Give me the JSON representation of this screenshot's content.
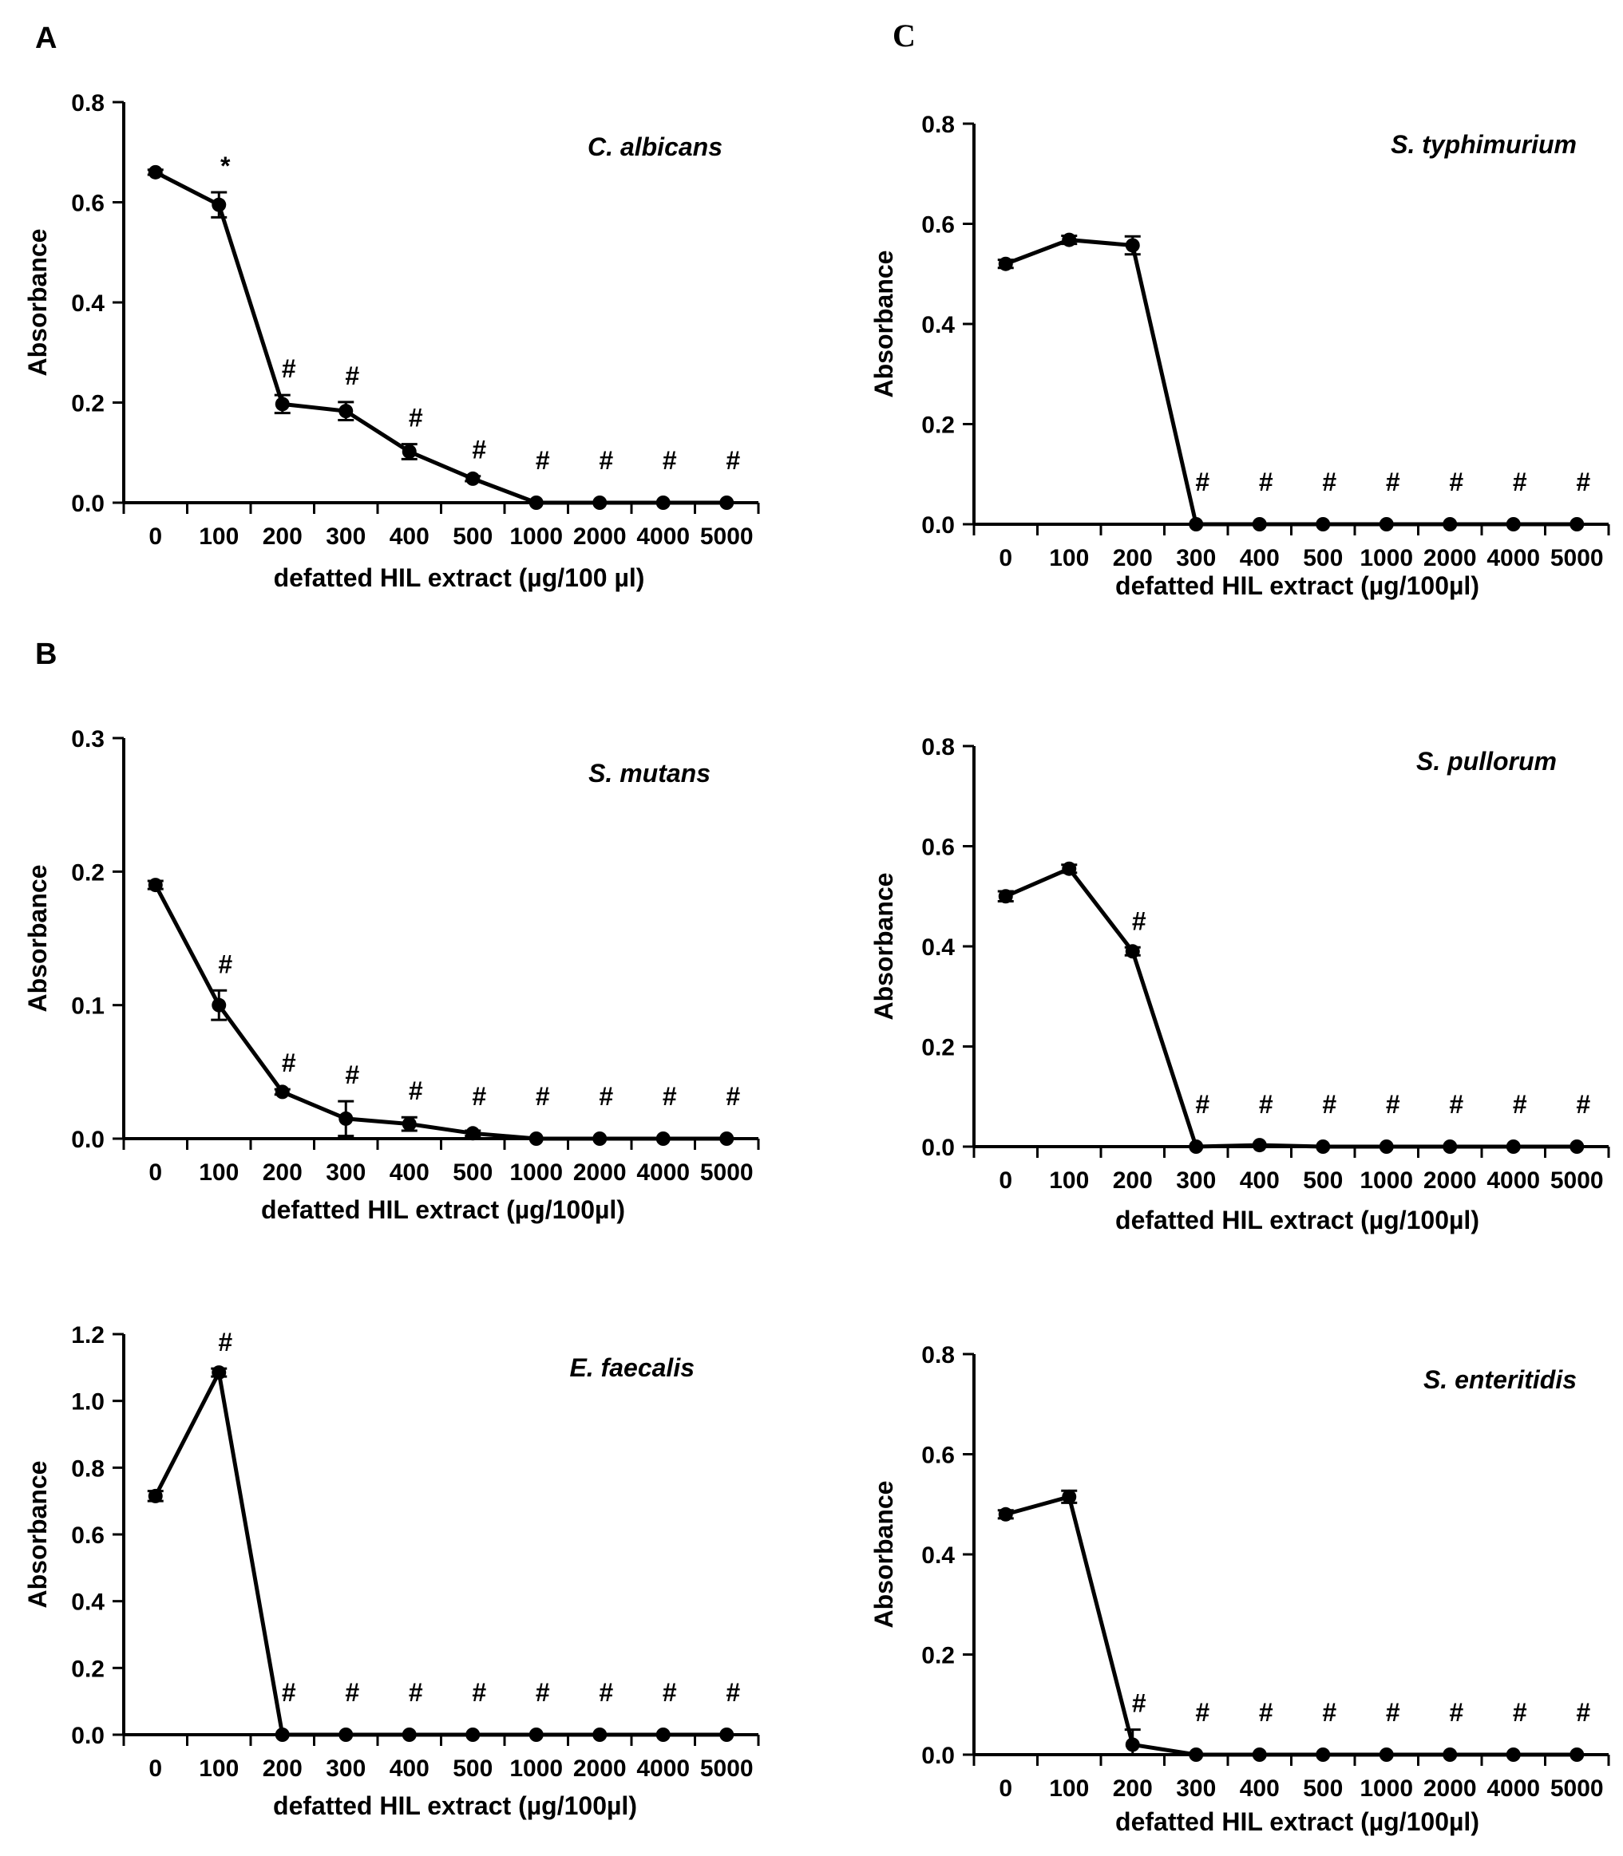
{
  "panel_letters": {
    "a": "A",
    "b": "B",
    "c": "C"
  },
  "chart_data": [
    {
      "id": "c-albicans",
      "type": "line",
      "title": "C. albicans",
      "xlabel": "defatted HIL extract (µg/100 µl)",
      "ylabel": "Absorbance",
      "categories": [
        "0",
        "100",
        "200",
        "300",
        "400",
        "500",
        "1000",
        "2000",
        "4000",
        "5000"
      ],
      "values": [
        0.66,
        0.595,
        0.197,
        0.183,
        0.102,
        0.048,
        0.0,
        0.0,
        0.0,
        0.0
      ],
      "errors": [
        0.005,
        0.025,
        0.018,
        0.018,
        0.015,
        0.005,
        0,
        0,
        0,
        0
      ],
      "annotations": [
        "",
        "*",
        "#",
        "#",
        "#",
        "#",
        "#",
        "#",
        "#",
        "#"
      ],
      "ylim": [
        0,
        0.8
      ],
      "yticks": [
        "0.0",
        "0.2",
        "0.4",
        "0.6",
        "0.8"
      ]
    },
    {
      "id": "s-mutans",
      "type": "line",
      "title": "S. mutans",
      "xlabel": "defatted HIL extract (µg/100µl)",
      "ylabel": "Absorbance",
      "categories": [
        "0",
        "100",
        "200",
        "300",
        "400",
        "500",
        "1000",
        "2000",
        "4000",
        "5000"
      ],
      "values": [
        0.19,
        0.1,
        0.035,
        0.015,
        0.011,
        0.004,
        0.0,
        0.0,
        0.0,
        0.0
      ],
      "errors": [
        0.003,
        0.011,
        0.002,
        0.013,
        0.005,
        0.002,
        0,
        0,
        0,
        0
      ],
      "annotations": [
        "",
        "#",
        "#",
        "#",
        "#",
        "#",
        "#",
        "#",
        "#",
        "#"
      ],
      "ylim": [
        0,
        0.3
      ],
      "yticks": [
        "0.0",
        "0.1",
        "0.2",
        "0.3"
      ]
    },
    {
      "id": "e-faecalis",
      "type": "line",
      "title": "E. faecalis",
      "xlabel": "defatted HIL extract (µg/100µl)",
      "ylabel": "Absorbance",
      "categories": [
        "0",
        "100",
        "200",
        "300",
        "400",
        "500",
        "1000",
        "2000",
        "4000",
        "5000"
      ],
      "values": [
        0.715,
        1.085,
        0.0,
        0.0,
        0.0,
        0.0,
        0.0,
        0.0,
        0.0,
        0.0
      ],
      "errors": [
        0.015,
        0.012,
        0,
        0,
        0,
        0,
        0,
        0,
        0,
        0
      ],
      "annotations": [
        "",
        "#",
        "#",
        "#",
        "#",
        "#",
        "#",
        "#",
        "#",
        "#"
      ],
      "ylim": [
        0,
        1.2
      ],
      "yticks": [
        "0.0",
        "0.2",
        "0.4",
        "0.6",
        "0.8",
        "1.0",
        "1.2"
      ]
    },
    {
      "id": "s-typhimurium",
      "type": "line",
      "title": "S. typhimurium",
      "xlabel": "defatted HIL extract (µg/100µl)",
      "ylabel": "Absorbance",
      "categories": [
        "0",
        "100",
        "200",
        "300",
        "400",
        "500",
        "1000",
        "2000",
        "4000",
        "5000"
      ],
      "values": [
        0.52,
        0.568,
        0.557,
        0.0,
        0.0,
        0.0,
        0.0,
        0.0,
        0.0,
        0.0
      ],
      "errors": [
        0.008,
        0.008,
        0.018,
        0,
        0,
        0,
        0,
        0,
        0,
        0
      ],
      "annotations": [
        "",
        "",
        "",
        "#",
        "#",
        "#",
        "#",
        "#",
        "#",
        "#"
      ],
      "ylim": [
        0,
        0.8
      ],
      "yticks": [
        "0.0",
        "0.2",
        "0.4",
        "0.6",
        "0.8"
      ]
    },
    {
      "id": "s-pullorum",
      "type": "line",
      "title": "S. pullorum",
      "xlabel": "defatted HIL extract (µg/100µl)",
      "ylabel": "Absorbance",
      "categories": [
        "0",
        "100",
        "200",
        "300",
        "400",
        "500",
        "1000",
        "2000",
        "4000",
        "5000"
      ],
      "values": [
        0.5,
        0.555,
        0.39,
        0.0,
        0.003,
        0.0,
        0.0,
        0.0,
        0.0,
        0.0
      ],
      "errors": [
        0.01,
        0.008,
        0.008,
        0,
        0,
        0,
        0,
        0,
        0,
        0
      ],
      "annotations": [
        "",
        "",
        "#",
        "#",
        "#",
        "#",
        "#",
        "#",
        "#",
        "#"
      ],
      "ylim": [
        0,
        0.8
      ],
      "yticks": [
        "0.0",
        "0.2",
        "0.4",
        "0.6",
        "0.8"
      ]
    },
    {
      "id": "s-enteritidis",
      "type": "line",
      "title": "S. enteritidis",
      "xlabel": "defatted HIL extract (µg/100µl)",
      "ylabel": "Absorbance",
      "categories": [
        "0",
        "100",
        "200",
        "300",
        "400",
        "500",
        "1000",
        "2000",
        "4000",
        "5000"
      ],
      "values": [
        0.48,
        0.515,
        0.02,
        0.0,
        0.0,
        0.0,
        0.0,
        0.0,
        0.0,
        0.0
      ],
      "errors": [
        0.008,
        0.012,
        0.03,
        0,
        0,
        0,
        0,
        0,
        0,
        0
      ],
      "annotations": [
        "",
        "",
        "#",
        "#",
        "#",
        "#",
        "#",
        "#",
        "#",
        "#"
      ],
      "ylim": [
        0,
        0.8
      ],
      "yticks": [
        "0.0",
        "0.2",
        "0.4",
        "0.6",
        "0.8"
      ]
    }
  ]
}
